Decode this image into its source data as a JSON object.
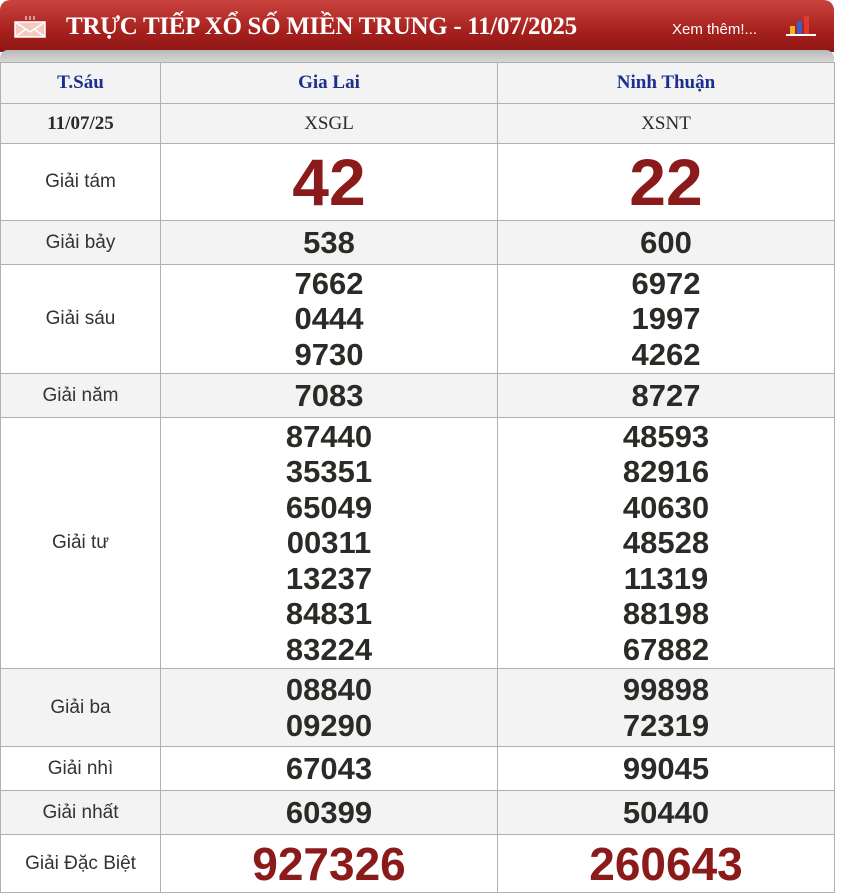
{
  "header": {
    "title": "TRỰC TIẾP XỔ SỐ MIỀN TRUNG - 11/07/2025",
    "more_link": "Xem thêm!...",
    "mail_icon": "mail-icon",
    "chart_icon": "bar-chart-icon",
    "color": "#a6201d"
  },
  "table": {
    "day": "T.Sáu",
    "date": "11/07/25",
    "provinces": [
      {
        "name": "Gia Lai",
        "code": "XSGL"
      },
      {
        "name": "Ninh Thuận",
        "code": "XSNT"
      }
    ],
    "prizes": [
      {
        "label": "Giải tám",
        "values": [
          [
            "42"
          ],
          [
            "22"
          ]
        ]
      },
      {
        "label": "Giải bảy",
        "values": [
          [
            "538"
          ],
          [
            "600"
          ]
        ]
      },
      {
        "label": "Giải sáu",
        "values": [
          [
            "7662",
            "0444",
            "9730"
          ],
          [
            "6972",
            "1997",
            "4262"
          ]
        ]
      },
      {
        "label": "Giải năm",
        "values": [
          [
            "7083"
          ],
          [
            "8727"
          ]
        ]
      },
      {
        "label": "Giải tư",
        "values": [
          [
            "87440",
            "35351",
            "65049",
            "00311",
            "13237",
            "84831",
            "83224"
          ],
          [
            "48593",
            "82916",
            "40630",
            "48528",
            "11319",
            "88198",
            "67882"
          ]
        ]
      },
      {
        "label": "Giải ba",
        "values": [
          [
            "08840",
            "09290"
          ],
          [
            "99898",
            "72319"
          ]
        ]
      },
      {
        "label": "Giải nhì",
        "values": [
          [
            "67043"
          ],
          [
            "99045"
          ]
        ]
      },
      {
        "label": "Giải nhất",
        "values": [
          [
            "60399"
          ],
          [
            "50440"
          ]
        ]
      },
      {
        "label": "Giải Đặc Biệt",
        "values": [
          [
            "927326"
          ],
          [
            "260643"
          ]
        ]
      }
    ],
    "accent_number_color": "#8b1a1a"
  }
}
